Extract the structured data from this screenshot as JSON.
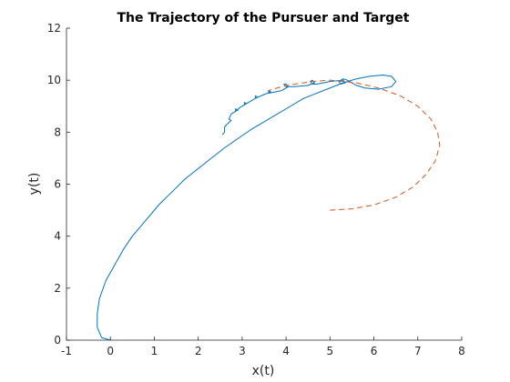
{
  "chart_data": {
    "type": "line",
    "title": "The Trajectory of the Pursuer and Target",
    "xlabel": "x(t)",
    "ylabel": "y(t)",
    "xlim": [
      -1,
      8
    ],
    "ylim": [
      0,
      12
    ],
    "xticks": [
      -1,
      0,
      1,
      2,
      3,
      4,
      5,
      6,
      7,
      8
    ],
    "yticks": [
      0,
      2,
      4,
      6,
      8,
      10,
      12
    ],
    "xtick_labels": [
      "-1",
      "0",
      "1",
      "2",
      "3",
      "4",
      "5",
      "6",
      "7",
      "8"
    ],
    "ytick_labels": [
      "0",
      "2",
      "4",
      "6",
      "8",
      "10",
      "12"
    ],
    "grid": false,
    "legend": "none",
    "series": [
      {
        "color": "#0072BD",
        "line_style": "solid",
        "x": [
          0.0,
          -0.2,
          -0.3,
          -0.3,
          -0.25,
          -0.1,
          0.1,
          0.3,
          0.5,
          0.8,
          1.1,
          1.4,
          1.7,
          2.0,
          2.3,
          2.6,
          2.9,
          3.2,
          3.5,
          3.8,
          4.1,
          4.4,
          4.7,
          5.0,
          5.3,
          5.6,
          5.9,
          6.2,
          6.4,
          6.5,
          6.4,
          6.1,
          5.8,
          5.6,
          5.5,
          5.4,
          5.3,
          5.2,
          5.25,
          5.35,
          5.3,
          5.0,
          4.7,
          4.6,
          4.55,
          4.6,
          4.65,
          4.5,
          4.2,
          4.0,
          3.95,
          4.0,
          4.05,
          3.9,
          3.6,
          3.6,
          3.65,
          3.5,
          3.3,
          3.3,
          3.35,
          3.2,
          3.05,
          3.05,
          3.1,
          2.95,
          2.85,
          2.85,
          2.9,
          2.75,
          2.7,
          2.75,
          2.65,
          2.6,
          2.6,
          2.55
        ],
        "y": [
          0.0,
          0.1,
          0.5,
          1.0,
          1.6,
          2.3,
          2.9,
          3.5,
          4.0,
          4.6,
          5.2,
          5.7,
          6.2,
          6.6,
          7.0,
          7.4,
          7.75,
          8.1,
          8.4,
          8.7,
          9.0,
          9.3,
          9.5,
          9.7,
          9.9,
          10.05,
          10.15,
          10.2,
          10.15,
          9.95,
          9.75,
          9.65,
          9.7,
          9.8,
          9.9,
          10.0,
          10.05,
          9.95,
          9.85,
          9.9,
          10.0,
          9.95,
          9.85,
          9.85,
          9.95,
          10.0,
          9.9,
          9.8,
          9.75,
          9.75,
          9.85,
          9.85,
          9.75,
          9.6,
          9.5,
          9.6,
          9.55,
          9.45,
          9.3,
          9.4,
          9.35,
          9.2,
          9.05,
          9.15,
          9.1,
          8.95,
          8.8,
          8.9,
          8.85,
          8.7,
          8.5,
          8.45,
          8.3,
          8.2,
          8.0,
          7.9
        ]
      },
      {
        "color": "#D95319",
        "line_style": "dashed",
        "x": [
          5.0,
          5.5,
          6.0,
          6.5,
          6.9,
          7.2,
          7.4,
          7.5,
          7.45,
          7.3,
          7.0,
          6.6,
          6.1,
          5.6,
          5.0,
          4.6,
          4.2,
          3.9,
          3.6
        ],
        "y": [
          5.0,
          5.05,
          5.2,
          5.5,
          5.9,
          6.4,
          6.9,
          7.5,
          8.0,
          8.5,
          9.0,
          9.4,
          9.7,
          9.9,
          10.0,
          9.95,
          9.85,
          9.75,
          9.6
        ]
      }
    ]
  }
}
